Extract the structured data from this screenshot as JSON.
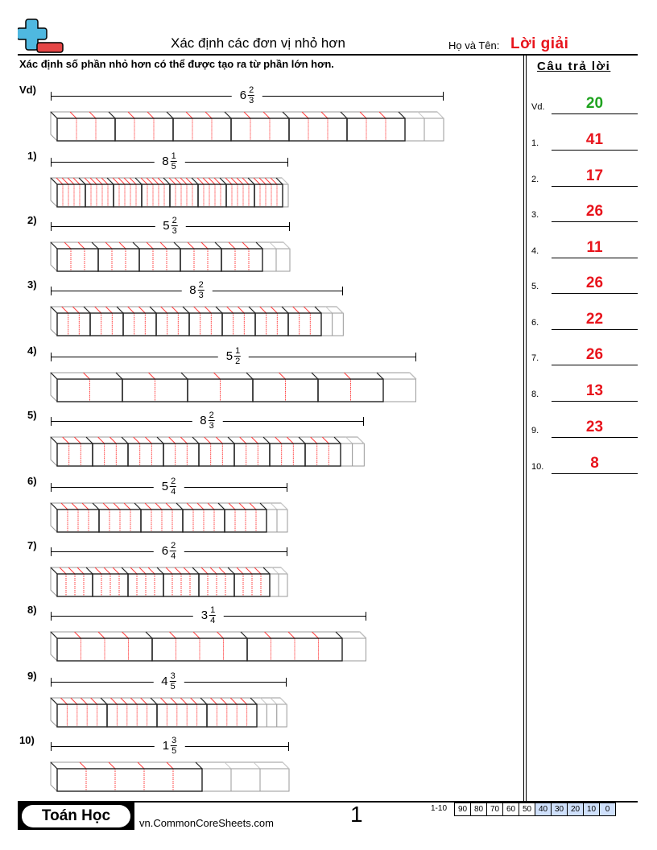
{
  "header": {
    "title": "Xác định các đơn vị nhỏ hơn",
    "name_label": "Họ và Tên:",
    "name_value": "Lời giải",
    "logo_icon": "plus-minus-logo-icon"
  },
  "instruction": "Xác định số phần nhỏ hơn có thể được tạo ra từ phần lớn hơn.",
  "colors": {
    "answer_red": "#e8141c",
    "example_green": "#1fa31f",
    "divider_red": "#ff3b3b",
    "faded_gray": "#9a9a9a",
    "score_highlight": "#cfe0fb"
  },
  "problems": [
    {
      "label": "Vd)",
      "whole": "6",
      "num": "2",
      "den": "3",
      "unit": 72,
      "wholes": 6,
      "parts": 3,
      "extra": 2
    },
    {
      "label": "1)",
      "whole": "8",
      "num": "1",
      "den": "5",
      "unit": 35,
      "wholes": 8,
      "parts": 5,
      "extra": 1
    },
    {
      "label": "2)",
      "whole": "5",
      "num": "2",
      "den": "3",
      "unit": 51,
      "wholes": 5,
      "parts": 3,
      "extra": 2
    },
    {
      "label": "3)",
      "whole": "8",
      "num": "2",
      "den": "3",
      "unit": 41,
      "wholes": 8,
      "parts": 3,
      "extra": 2
    },
    {
      "label": "4)",
      "whole": "5",
      "num": "1",
      "den": "2",
      "unit": 81,
      "wholes": 5,
      "parts": 2,
      "extra": 1
    },
    {
      "label": "5)",
      "whole": "8",
      "num": "2",
      "den": "3",
      "unit": 44,
      "wholes": 8,
      "parts": 3,
      "extra": 2
    },
    {
      "label": "6)",
      "whole": "5",
      "num": "2",
      "den": "4",
      "unit": 52,
      "wholes": 5,
      "parts": 4,
      "extra": 2
    },
    {
      "label": "7)",
      "whole": "6",
      "num": "2",
      "den": "4",
      "unit": 44,
      "wholes": 6,
      "parts": 4,
      "extra": 2
    },
    {
      "label": "8)",
      "whole": "3",
      "num": "1",
      "den": "4",
      "unit": 118,
      "wholes": 3,
      "parts": 4,
      "extra": 1
    },
    {
      "label": "9)",
      "whole": "4",
      "num": "3",
      "den": "5",
      "unit": 62,
      "wholes": 4,
      "parts": 5,
      "extra": 3
    },
    {
      "label": "10)",
      "whole": "1",
      "num": "3",
      "den": "5",
      "unit": 180,
      "wholes": 1,
      "parts": 5,
      "extra": 3
    }
  ],
  "answers": {
    "heading": "Câu trả lời",
    "items": [
      {
        "label": "Vd.",
        "value": "20"
      },
      {
        "label": "1.",
        "value": "41"
      },
      {
        "label": "2.",
        "value": "17"
      },
      {
        "label": "3.",
        "value": "26"
      },
      {
        "label": "4.",
        "value": "11"
      },
      {
        "label": "5.",
        "value": "26"
      },
      {
        "label": "6.",
        "value": "22"
      },
      {
        "label": "7.",
        "value": "26"
      },
      {
        "label": "8.",
        "value": "13"
      },
      {
        "label": "9.",
        "value": "23"
      },
      {
        "label": "10.",
        "value": "8"
      }
    ]
  },
  "footer": {
    "brand": "Toán Học",
    "site": "vn.CommonCoreSheets.com",
    "page_number": "1",
    "score_label": "1-10",
    "scores": [
      "90",
      "80",
      "70",
      "60",
      "50",
      "40",
      "30",
      "20",
      "10",
      "0"
    ]
  }
}
